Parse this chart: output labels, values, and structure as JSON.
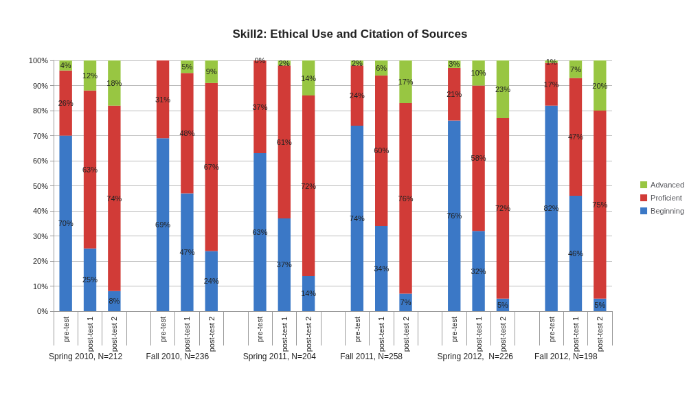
{
  "chart_data": {
    "type": "bar",
    "stacked": true,
    "title": "Skill2: Ethical Use and Citation of Sources",
    "categories": [
      "pre-test",
      "post-test 1",
      "post-test 2",
      null,
      "pre-test",
      "post-test 1",
      "post-test 2",
      null,
      "pre-test",
      "post-test 1",
      "post-test 2",
      null,
      "pre-test",
      "post-test 1",
      "post-test 2",
      null,
      "pre-test",
      "post-test 1",
      "post-test 2",
      null,
      "pre-test",
      "post-test 1",
      "post-test 2"
    ],
    "series": [
      {
        "name": "Beginning",
        "color": "#3b78c6",
        "values": [
          70,
          25,
          8,
          null,
          69,
          47,
          24,
          null,
          63,
          37,
          14,
          null,
          74,
          34,
          7,
          null,
          76,
          32,
          5,
          null,
          82,
          46,
          5
        ],
        "value_labels": [
          "70%",
          "25%",
          "8%",
          null,
          "69%",
          "47%",
          "24%",
          null,
          "63%",
          "37%",
          "14%",
          null,
          "74%",
          "34%",
          "7%",
          null,
          "76%",
          "32%",
          "5%",
          null,
          "82%",
          "46%",
          "5%"
        ]
      },
      {
        "name": "Proficient",
        "color": "#d13b37",
        "values": [
          26,
          63,
          74,
          null,
          31,
          48,
          67,
          null,
          37,
          61,
          72,
          null,
          24,
          60,
          76,
          null,
          21,
          58,
          72,
          null,
          17,
          47,
          75
        ],
        "value_labels": [
          "26%",
          "63%",
          "74%",
          null,
          "31%",
          "48%",
          "67%",
          null,
          "37%",
          "61%",
          "72%",
          null,
          "24%",
          "60%",
          "76%",
          null,
          "21%",
          "58%",
          "72%",
          null,
          "17%",
          "47%",
          "75%"
        ]
      },
      {
        "name": "Advanced",
        "color": "#98c642",
        "values": [
          4,
          12,
          18,
          null,
          0,
          5,
          9,
          null,
          0,
          2,
          14,
          null,
          2,
          6,
          17,
          null,
          3,
          10,
          23,
          null,
          1,
          7,
          20
        ],
        "value_labels": [
          "4%",
          "12%",
          "18%",
          null,
          null,
          "5%",
          "9%",
          null,
          "0%",
          "2%",
          "14%",
          null,
          "2%",
          "6%",
          "17%",
          null,
          "3%",
          "10%",
          "23%",
          null,
          "1%",
          "7%",
          "20%"
        ]
      }
    ],
    "ylim": [
      0,
      100
    ],
    "yticks": [
      {
        "value": 0,
        "label": "0%"
      },
      {
        "value": 10,
        "label": "10%"
      },
      {
        "value": 20,
        "label": "20%"
      },
      {
        "value": 30,
        "label": "30%"
      },
      {
        "value": 40,
        "label": "40%"
      },
      {
        "value": 50,
        "label": "50%"
      },
      {
        "value": 60,
        "label": "60%"
      },
      {
        "value": 70,
        "label": "70%"
      },
      {
        "value": 80,
        "label": "80%"
      },
      {
        "value": 90,
        "label": "90%"
      },
      {
        "value": 100,
        "label": "100%"
      }
    ],
    "grid": "y",
    "legend": "right",
    "annotations": [
      "Spring 2010, N=212",
      "Fall 2010, N=236",
      "Spring 2011, N=204",
      "Fall 2011, N=258",
      "Spring 2012,  N=226",
      "Fall 2012, N=198"
    ]
  }
}
